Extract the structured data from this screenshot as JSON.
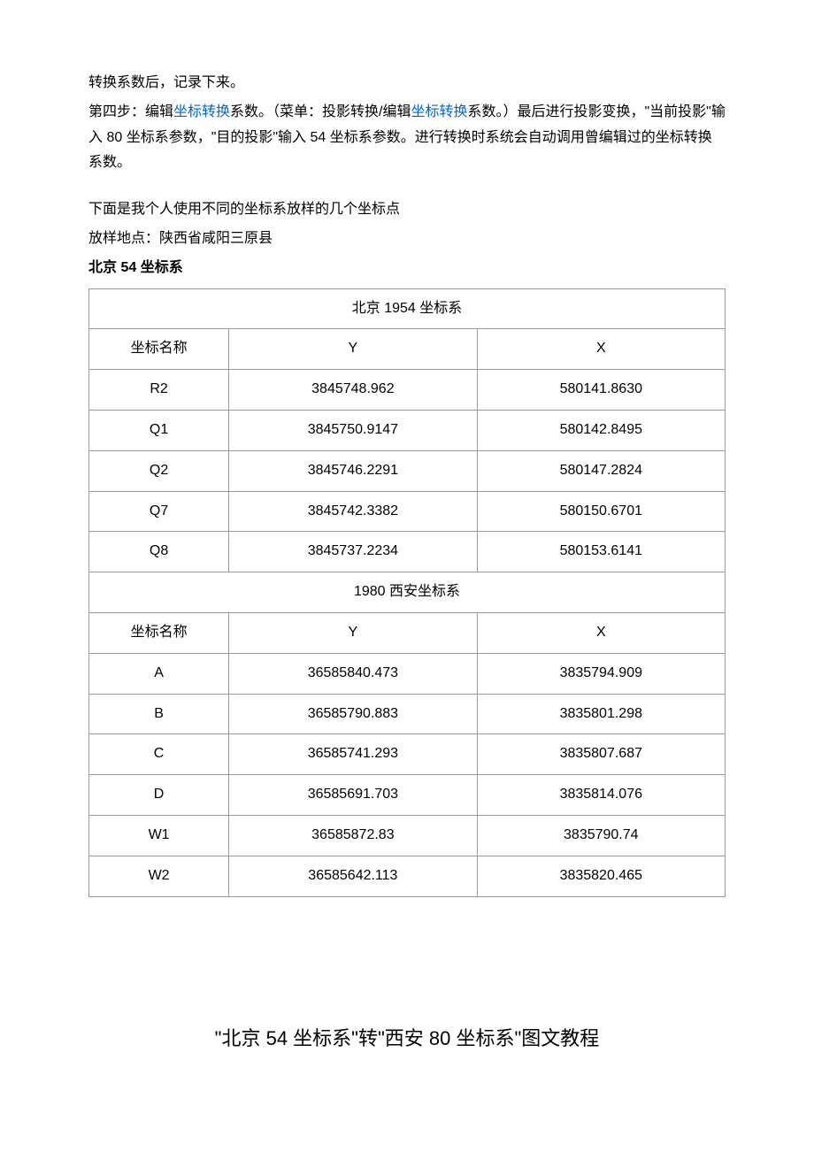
{
  "paragraphs": {
    "p1": "转换系数后，记录下来。",
    "p2_part1": "第四步：编辑",
    "p2_link1": "坐标转换",
    "p2_part2": "系数。（菜单：投影转换/编辑",
    "p2_link2": "坐标转换",
    "p2_part3": "系数。）最后进行投影变换，\"当前投影\"输入 80 坐标系参数，\"目的投影\"输入 54 坐标系参数。进行转换时系统会自动调用曾编辑过的坐标转换系数。",
    "p3": "下面是我个人使用不同的坐标系放样的几个坐标点",
    "p4": "放样地点：陕西省咸阳三原县",
    "p5": "北京 54 坐标系"
  },
  "table1": {
    "title": "北京 1954 坐标系",
    "headers": {
      "name": "坐标名称",
      "y": "Y",
      "x": "X"
    },
    "rows": [
      {
        "name": "R2",
        "y": "3845748.962",
        "x": "580141.8630"
      },
      {
        "name": "Q1",
        "y": "3845750.9147",
        "x": "580142.8495"
      },
      {
        "name": "Q2",
        "y": "3845746.2291",
        "x": "580147.2824"
      },
      {
        "name": "Q7",
        "y": "3845742.3382",
        "x": "580150.6701"
      },
      {
        "name": "Q8",
        "y": "3845737.2234",
        "x": "580153.6141"
      }
    ]
  },
  "table2": {
    "title": "1980 西安坐标系",
    "headers": {
      "name": "坐标名称",
      "y": "Y",
      "x": "X"
    },
    "rows": [
      {
        "name": "A",
        "y": "36585840.473",
        "x": "3835794.909"
      },
      {
        "name": "B",
        "y": "36585790.883",
        "x": "3835801.298"
      },
      {
        "name": "C",
        "y": "36585741.293",
        "x": "3835807.687"
      },
      {
        "name": "D",
        "y": "36585691.703",
        "x": "3835814.076"
      },
      {
        "name": "W1",
        "y": "36585872.83",
        "x": "3835790.74"
      },
      {
        "name": "W2",
        "y": "36585642.113",
        "x": "3835820.465"
      }
    ]
  },
  "page_title": "\"北京 54 坐标系\"转\"西安 80 坐标系\"图文教程"
}
